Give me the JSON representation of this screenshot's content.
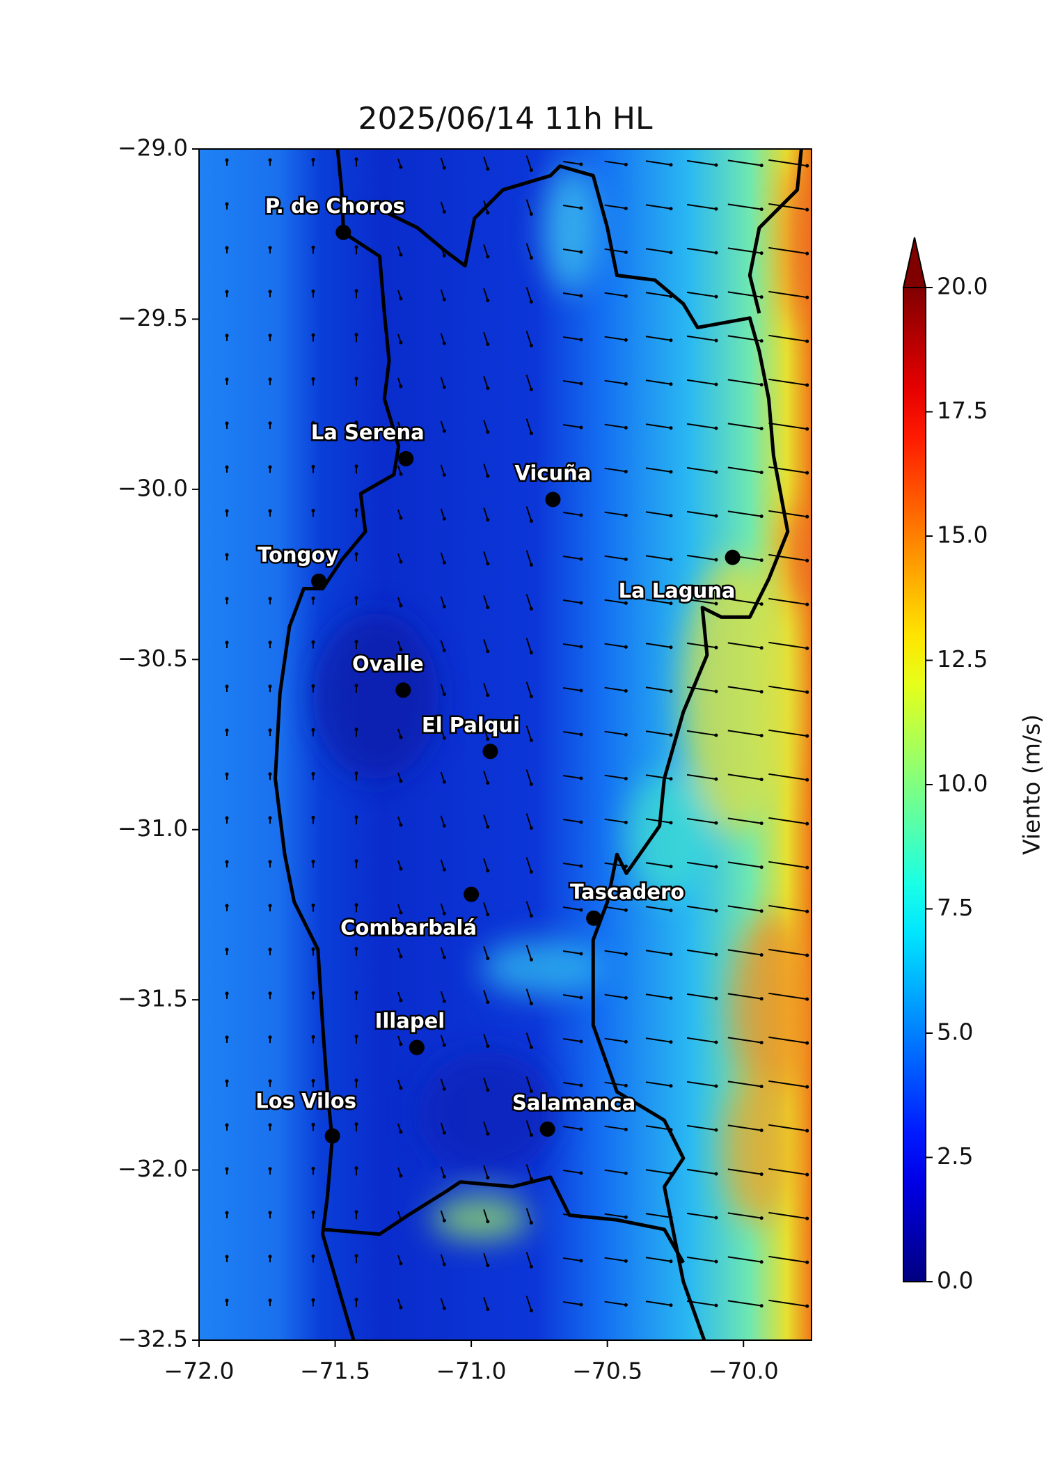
{
  "chart_data": {
    "type": "map",
    "title": "2025/06/14 11h HL",
    "xlim": [
      -72,
      -69.75
    ],
    "ylim": [
      -32.5,
      -29
    ],
    "xticks": [
      {
        "value": -72,
        "label": "−72.0"
      },
      {
        "value": -71.5,
        "label": "−71.5"
      },
      {
        "value": -71,
        "label": "−71.0"
      },
      {
        "value": -70.5,
        "label": "−70.5"
      },
      {
        "value": -70,
        "label": "−70.0"
      }
    ],
    "yticks": [
      {
        "value": -29,
        "label": "−29.0"
      },
      {
        "value": -29.5,
        "label": "−29.5"
      },
      {
        "value": -30,
        "label": "−30.0"
      },
      {
        "value": -30.5,
        "label": "−30.5"
      },
      {
        "value": -31,
        "label": "−31.0"
      },
      {
        "value": -31.5,
        "label": "−31.5"
      },
      {
        "value": -32,
        "label": "−32.0"
      },
      {
        "value": -32.5,
        "label": "−32.5"
      }
    ],
    "places": [
      {
        "name": "P. de Choros",
        "lon": -71.47,
        "lat": -29.245
      },
      {
        "name": "La Serena",
        "lon": -71.24,
        "lat": -29.91
      },
      {
        "name": "Vicuña",
        "lon": -70.7,
        "lat": -30.03
      },
      {
        "name": "Tongoy",
        "lon": -71.56,
        "lat": -30.27
      },
      {
        "name": "La Laguna",
        "lon": -70.04,
        "lat": -30.2
      },
      {
        "name": "Ovalle",
        "lon": -71.25,
        "lat": -30.59
      },
      {
        "name": "El Palqui",
        "lon": -70.93,
        "lat": -30.77
      },
      {
        "name": "Combarbalá",
        "lon": -71.0,
        "lat": -31.19
      },
      {
        "name": "Tascadero",
        "lon": -70.55,
        "lat": -31.26
      },
      {
        "name": "Illapel",
        "lon": -71.2,
        "lat": -31.64
      },
      {
        "name": "Los Vilos",
        "lon": -71.51,
        "lat": -31.9
      },
      {
        "name": "Salamanca",
        "lon": -70.72,
        "lat": -31.88
      }
    ],
    "colorbar": {
      "label": "Viento (m/s)",
      "colormap": "jet",
      "lim": [
        0,
        20
      ],
      "extend": "max",
      "ticks": [
        {
          "value": 0,
          "label": "0.0"
        },
        {
          "value": 2.5,
          "label": "2.5"
        },
        {
          "value": 5,
          "label": "5.0"
        },
        {
          "value": 7.5,
          "label": "7.5"
        },
        {
          "value": 10,
          "label": "10.0"
        },
        {
          "value": 12.5,
          "label": "12.5"
        },
        {
          "value": 15,
          "label": "15.0"
        },
        {
          "value": 17.5,
          "label": "17.5"
        },
        {
          "value": 20,
          "label": "20.0"
        }
      ]
    }
  }
}
